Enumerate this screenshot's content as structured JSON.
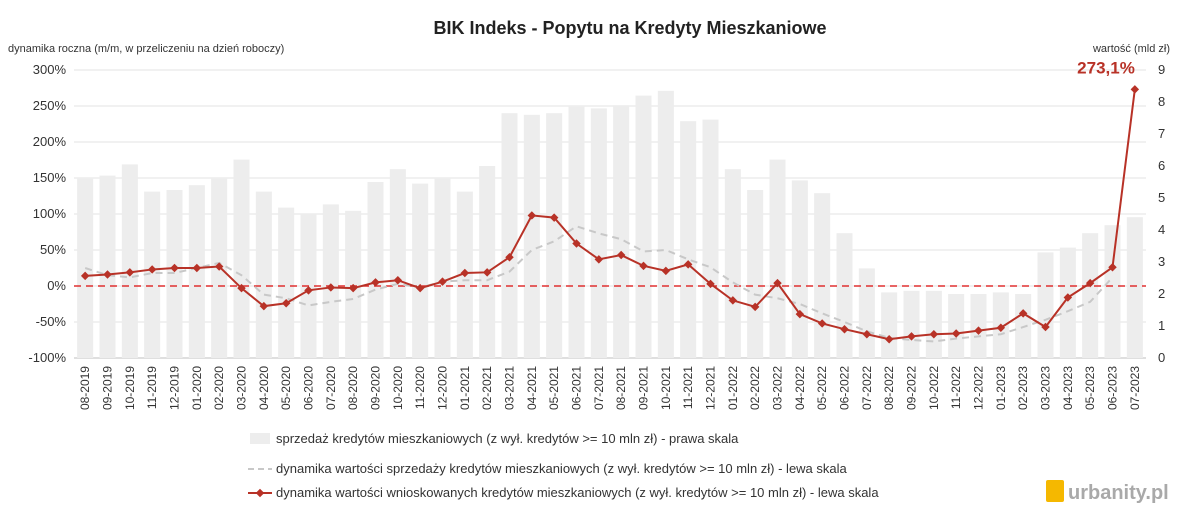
{
  "chart_data": {
    "type": "bar",
    "title": "BIK Indeks - Popytu na Kredyty Mieszkaniowe",
    "ylabel_left": "dynamika roczna (m/m, w przeliczeniu na dzień roboczy)",
    "ylabel_right": "wartość (mld zł)",
    "ylim_left": [
      -100,
      300
    ],
    "ylim_right": [
      0,
      9
    ],
    "yticks_left": [
      "-100%",
      "-50%",
      "0%",
      "50%",
      "100%",
      "150%",
      "200%",
      "250%",
      "300%"
    ],
    "yticks_right": [
      "0",
      "1",
      "2",
      "3",
      "4",
      "5",
      "6",
      "7",
      "8",
      "9"
    ],
    "categories": [
      "08-2019",
      "09-2019",
      "10-2019",
      "11-2019",
      "12-2019",
      "01-2020",
      "02-2020",
      "03-2020",
      "04-2020",
      "05-2020",
      "06-2020",
      "07-2020",
      "08-2020",
      "09-2020",
      "10-2020",
      "11-2020",
      "12-2020",
      "01-2021",
      "02-2021",
      "03-2021",
      "04-2021",
      "05-2021",
      "06-2021",
      "07-2021",
      "08-2021",
      "09-2021",
      "10-2021",
      "11-2021",
      "12-2021",
      "01-2022",
      "02-2022",
      "03-2022",
      "04-2022",
      "05-2022",
      "06-2022",
      "07-2022",
      "08-2022",
      "09-2022",
      "10-2022",
      "11-2022",
      "12-2022",
      "01-2023",
      "02-2023",
      "03-2023",
      "04-2023",
      "05-2023",
      "06-2023",
      "07-2023"
    ],
    "series": [
      {
        "name": "sprzedaż kredytów mieszkaniowych (z wył. kredytów >= 10 mln zł) - prawa skala",
        "type": "bar",
        "axis": "right",
        "color": "#ededed",
        "values": [
          5.6,
          5.7,
          6.05,
          5.2,
          5.25,
          5.4,
          5.6,
          6.2,
          5.2,
          4.7,
          4.5,
          4.8,
          4.6,
          5.5,
          5.9,
          5.45,
          5.6,
          5.2,
          6.0,
          7.65,
          7.6,
          7.65,
          7.85,
          7.8,
          7.9,
          8.2,
          8.35,
          7.4,
          7.45,
          5.9,
          5.25,
          6.2,
          5.55,
          5.15,
          3.9,
          2.8,
          2.05,
          2.1,
          2.1,
          2.0,
          2.0,
          2.05,
          2.0,
          3.3,
          3.45,
          3.9,
          4.15,
          4.4
        ]
      },
      {
        "name": "dynamika wartości sprzedaży kredytów mieszkaniowych (z wył. kredytów >= 10 mln zł) - lewa skala",
        "type": "line",
        "axis": "left",
        "color": "#c8c8c8",
        "dashed": true,
        "values": [
          25,
          15,
          12,
          18,
          18,
          25,
          32,
          15,
          -12,
          -17,
          -27,
          -22,
          -18,
          -5,
          3,
          -2,
          6,
          8,
          8,
          20,
          50,
          62,
          83,
          73,
          65,
          48,
          50,
          37,
          26,
          5,
          -12,
          -17,
          -25,
          -38,
          -50,
          -63,
          -72,
          -75,
          -77,
          -73,
          -70,
          -67,
          -57,
          -47,
          -35,
          -22,
          12,
          null
        ]
      },
      {
        "name": "dynamika wartości wnioskowanych kredytów mieszkaniowych (z wył. kredytów >= 10 mln zł) - lewa skala",
        "type": "line",
        "axis": "left",
        "color": "#b83227",
        "marker": "diamond",
        "values": [
          14,
          16,
          19,
          23,
          25,
          25,
          27,
          -3,
          -28,
          -24,
          -6,
          -2,
          -3,
          5,
          8,
          -3,
          6,
          18,
          19,
          40,
          98,
          95,
          59,
          37,
          43,
          28,
          21,
          30,
          3,
          -20,
          -29,
          4,
          -39,
          -52,
          -60,
          -67,
          -74,
          -70,
          -67,
          -66,
          -62,
          -58,
          -38,
          -57,
          -16,
          4,
          26,
          273.1
        ]
      }
    ],
    "reference_line": {
      "y": 0,
      "color": "#e03030",
      "dashed": true
    },
    "annotations": [
      {
        "text": "273,1%",
        "category": "07-2023"
      }
    ],
    "grid": true,
    "legend_position": "bottom"
  },
  "watermark": "urbanity.pl"
}
